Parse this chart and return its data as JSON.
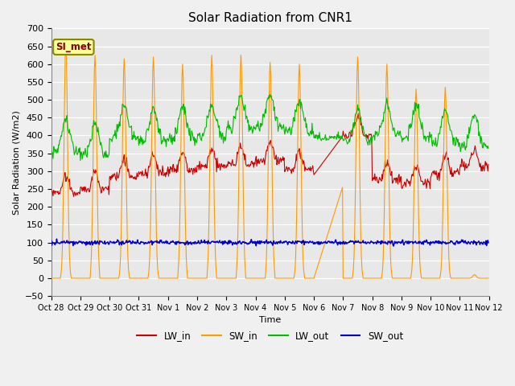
{
  "title": "Solar Radiation from CNR1",
  "ylabel": "Solar Radiation (W/m2)",
  "xlabel": "Time",
  "ylim": [
    -50,
    700
  ],
  "bg_color": "#e8e8e8",
  "fig_color": "#f0f0f0",
  "lw_in_color": "#cc0000",
  "sw_in_color": "#ff9900",
  "lw_out_color": "#00bb00",
  "sw_out_color": "#0000cc",
  "si_met_label": "SI_met",
  "xtick_labels": [
    "Oct 28",
    "Oct 29",
    "Oct 30",
    "Oct 31",
    "Nov 1",
    "Nov 2",
    "Nov 3",
    "Nov 4",
    "Nov 5",
    "Nov 6",
    "Nov 7",
    "Nov 8",
    "Nov 9",
    "Nov 10",
    "Nov 11",
    "Nov 12"
  ],
  "ytick_values": [
    -50,
    0,
    50,
    100,
    150,
    200,
    250,
    300,
    350,
    400,
    450,
    500,
    550,
    600,
    650,
    700
  ]
}
